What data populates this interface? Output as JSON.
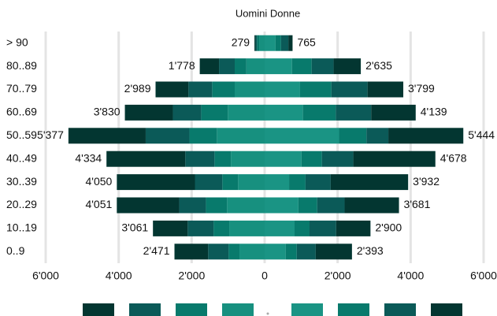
{
  "chart_data": {
    "type": "pyramid",
    "title": "Uomini Donne",
    "categories": [
      "> 90",
      "80..89",
      "70..79",
      "60..69",
      "50..59",
      "40..49",
      "30..39",
      "20..29",
      "10..19",
      "0..9"
    ],
    "series": [
      {
        "side": "left",
        "color": "#17907f",
        "values": [
          150,
          500,
          820,
          1010,
          1310,
          925,
          730,
          1030,
          970,
          690
        ]
      },
      {
        "side": "left",
        "color": "#087a6c",
        "values": [
          60,
          320,
          620,
          730,
          750,
          450,
          430,
          580,
          430,
          300
        ]
      },
      {
        "side": "left",
        "color": "#0b5a58",
        "values": [
          40,
          430,
          650,
          775,
          1200,
          800,
          750,
          730,
          710,
          560
        ]
      },
      {
        "side": "left",
        "color": "#033631",
        "values": [
          29,
          528,
          899,
          1315,
          2117,
          2159,
          2140,
          1711,
          951,
          921
        ]
      },
      {
        "side": "right",
        "color": "#1a9484",
        "values": [
          300,
          750,
          970,
          1050,
          2040,
          1010,
          670,
          925,
          820,
          580
        ]
      },
      {
        "side": "right",
        "color": "#087a6c",
        "values": [
          150,
          540,
          860,
          900,
          750,
          560,
          450,
          515,
          410,
          300
        ]
      },
      {
        "side": "right",
        "color": "#0b5a58",
        "values": [
          200,
          600,
          990,
          970,
          600,
          860,
          690,
          750,
          730,
          520
        ]
      },
      {
        "side": "right",
        "color": "#033631",
        "values": [
          115,
          745,
          979,
          1219,
          2054,
          2248,
          2122,
          1491,
          940,
          993
        ]
      }
    ],
    "male_totals": {
      "values": [
        279,
        1778,
        2989,
        3830,
        5377,
        4334,
        4050,
        4051,
        3061,
        2471
      ],
      "value_labels": [
        "279",
        "1'778",
        "2'989",
        "3'830",
        "5'377",
        "4'334",
        "4'050",
        "4'051",
        "3'061",
        "2'471"
      ]
    },
    "female_totals": {
      "values": [
        765,
        2635,
        3799,
        4139,
        5444,
        4678,
        3932,
        3681,
        2900,
        2393
      ],
      "value_labels": [
        "765",
        "2'635",
        "3'799",
        "4'139",
        "5'444",
        "4'678",
        "3'932",
        "3'681",
        "2'900",
        "2'393"
      ]
    },
    "xlim": [
      -6000,
      6000
    ],
    "xticks": [
      {
        "value": -6000,
        "label": "6'000"
      },
      {
        "value": -4000,
        "label": "4'000"
      },
      {
        "value": -2000,
        "label": "2'000"
      },
      0,
      {
        "value": 2000,
        "label": "2'000"
      },
      {
        "value": 4000,
        "label": "4'000"
      },
      {
        "value": 6000,
        "label": "6'000"
      }
    ],
    "grid": true
  }
}
